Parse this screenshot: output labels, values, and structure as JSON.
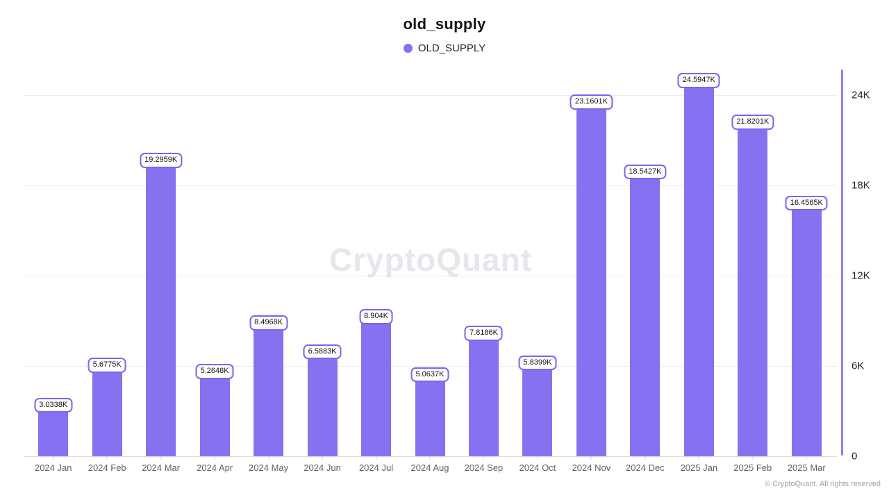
{
  "header": {
    "title": "old_supply"
  },
  "legend": {
    "items": [
      {
        "label": "OLD_SUPPLY",
        "color": "#8671f0"
      }
    ]
  },
  "watermark": "CryptoQuant",
  "footer": {
    "copyright": "© CryptoQuant. All rights reserved"
  },
  "colors": {
    "bar": "#8671f0",
    "axis_line": "#9080f2",
    "label_border": "#7c64ee",
    "label_text": "#131417",
    "gridline": "#ededf1",
    "baseline": "#d9dbe0",
    "x_label": "#5c6069",
    "y_label": "#1f2126",
    "watermark": "#e6e7ec",
    "footer_text": "#9ba0aa"
  },
  "chart_data": {
    "type": "bar",
    "title": "old_supply",
    "series_name": "OLD_SUPPLY",
    "legend_position": "top",
    "grid": true,
    "categories": [
      "2024 Jan",
      "2024 Feb",
      "2024 Mar",
      "2024 Apr",
      "2024 May",
      "2024 Jun",
      "2024 Jul",
      "2024 Aug",
      "2024 Sep",
      "2024 Oct",
      "2024 Nov",
      "2024 Dec",
      "2025 Jan",
      "2025 Feb",
      "2025 Mar"
    ],
    "values": [
      3033.8,
      5677.5,
      19295.9,
      5264.8,
      8496.8,
      6588.3,
      8904,
      5063.7,
      7818.6,
      5839.9,
      23160.1,
      18542.7,
      24594.7,
      21820.1,
      16456.5
    ],
    "value_labels": [
      "3.0338K",
      "5.6775K",
      "19.2959K",
      "5.2648K",
      "8.4968K",
      "6.5883K",
      "8.904K",
      "5.0637K",
      "7.8186K",
      "5.8399K",
      "23.1601K",
      "18.5427K",
      "24.5947K",
      "21.8201K",
      "16.4565K"
    ],
    "y_ticks": [
      {
        "label": "0",
        "value": 0
      },
      {
        "label": "6K",
        "value": 6000
      },
      {
        "label": "12K",
        "value": 12000
      },
      {
        "label": "18K",
        "value": 18000
      },
      {
        "label": "24K",
        "value": 24000
      }
    ],
    "xlabel": "",
    "ylabel": "",
    "ylim": [
      0,
      25700
    ]
  }
}
